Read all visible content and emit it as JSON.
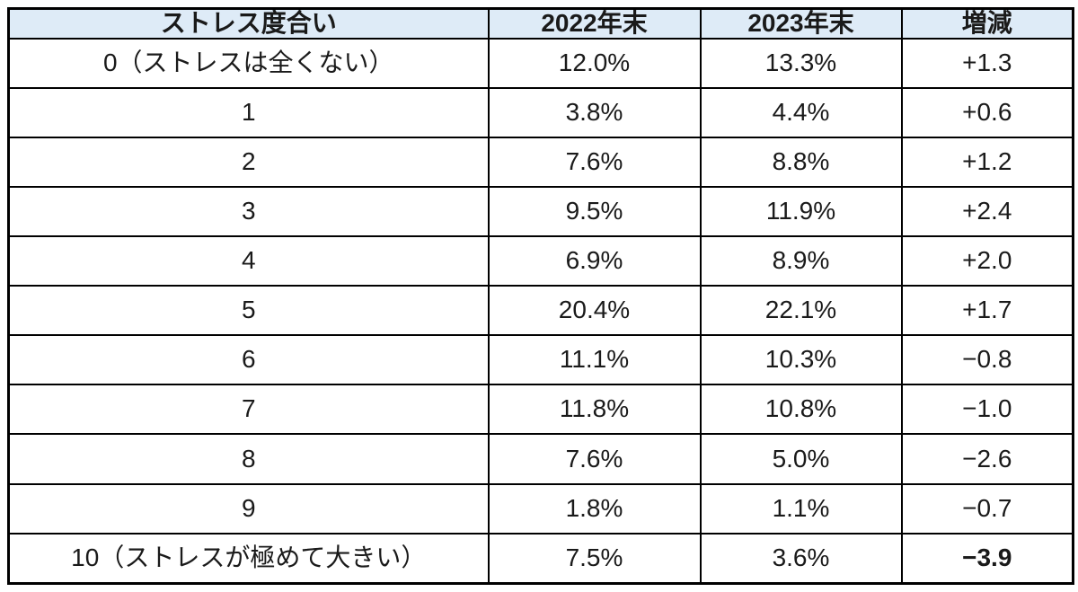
{
  "chart_data": {
    "type": "table",
    "columns": [
      "ストレス度合い",
      "2022年末",
      "2023年末",
      "増減"
    ],
    "rows": [
      {
        "label": "0（ストレスは全くない）",
        "y2022": "12.0%",
        "y2023": "13.3%",
        "change": "+1.3",
        "negative": false,
        "emphasis": false
      },
      {
        "label": "1",
        "y2022": "3.8%",
        "y2023": "4.4%",
        "change": "+0.6",
        "negative": false,
        "emphasis": false
      },
      {
        "label": "2",
        "y2022": "7.6%",
        "y2023": "8.8%",
        "change": "+1.2",
        "negative": false,
        "emphasis": false
      },
      {
        "label": "3",
        "y2022": "9.5%",
        "y2023": "11.9%",
        "change": "+2.4",
        "negative": false,
        "emphasis": false
      },
      {
        "label": "4",
        "y2022": "6.9%",
        "y2023": "8.9%",
        "change": "+2.0",
        "negative": false,
        "emphasis": false
      },
      {
        "label": "5",
        "y2022": "20.4%",
        "y2023": "22.1%",
        "change": "+1.7",
        "negative": false,
        "emphasis": false
      },
      {
        "label": "6",
        "y2022": "11.1%",
        "y2023": "10.3%",
        "change": "−0.8",
        "negative": true,
        "emphasis": false
      },
      {
        "label": "7",
        "y2022": "11.8%",
        "y2023": "10.8%",
        "change": "−1.0",
        "negative": true,
        "emphasis": false
      },
      {
        "label": "8",
        "y2022": "7.6%",
        "y2023": "5.0%",
        "change": "−2.6",
        "negative": true,
        "emphasis": false
      },
      {
        "label": "9",
        "y2022": "1.8%",
        "y2023": "1.1%",
        "change": "−0.7",
        "negative": true,
        "emphasis": false
      },
      {
        "label": "10（ストレスが極めて大きい）",
        "y2022": "7.5%",
        "y2023": "3.6%",
        "change": "−3.9",
        "negative": true,
        "emphasis": true
      }
    ],
    "colors": {
      "header_bg": "#deebf7",
      "border": "#000000",
      "text": "#1a1a1a",
      "negative_red": "#ff0000"
    },
    "layout": {
      "legend": "none",
      "grid": "all-borders"
    }
  }
}
